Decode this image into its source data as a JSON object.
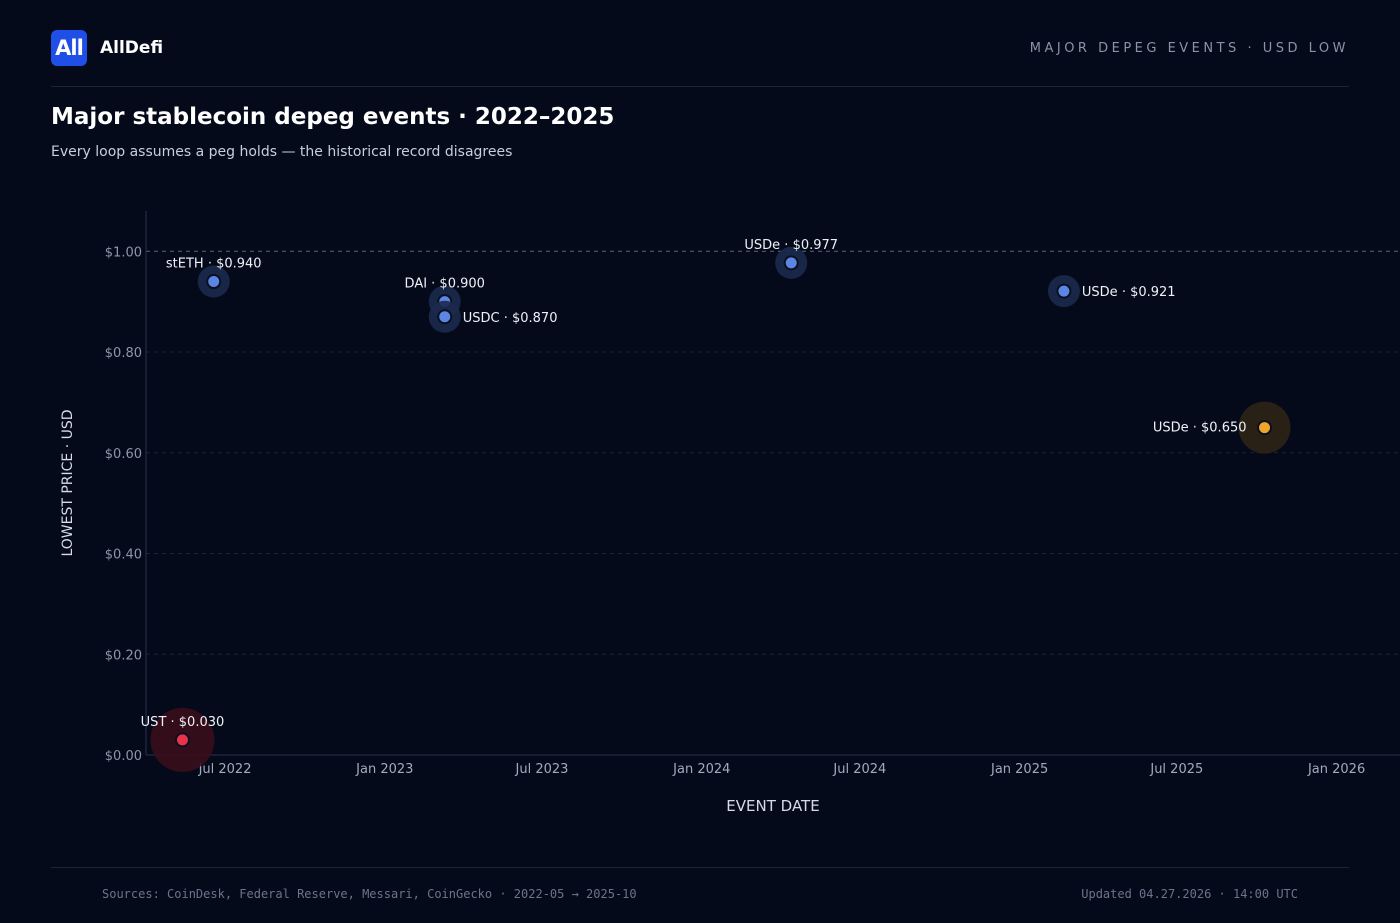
{
  "brand": {
    "logo_text": "All",
    "name": "AllDefi"
  },
  "header": {
    "tag": "MAJOR DEPEG EVENTS · USD LOW"
  },
  "page": {
    "title": "Major stablecoin depeg events · 2022–2025",
    "subtitle": "Every loop assumes a peg holds — the historical record disagrees"
  },
  "colors": {
    "background": "#050a1b",
    "point_blue": "#5b86e5",
    "point_red": "#e8334a",
    "point_amber": "#f0a42a",
    "peg_line": "#5c6478"
  },
  "chart_data": {
    "type": "scatter",
    "xlabel": "EVENT DATE",
    "ylabel": "LOWEST PRICE · USD",
    "xlim": [
      "2022-04-01",
      "2026-03-15"
    ],
    "ylim": [
      0,
      1.08
    ],
    "x_ticks": [
      {
        "date": "2022-07-01",
        "label": "Jul 2022"
      },
      {
        "date": "2023-01-01",
        "label": "Jan 2023"
      },
      {
        "date": "2023-07-01",
        "label": "Jul 2023"
      },
      {
        "date": "2024-01-01",
        "label": "Jan 2024"
      },
      {
        "date": "2024-07-01",
        "label": "Jul 2024"
      },
      {
        "date": "2025-01-01",
        "label": "Jan 2025"
      },
      {
        "date": "2025-07-01",
        "label": "Jul 2025"
      },
      {
        "date": "2026-01-01",
        "label": "Jan 2026"
      }
    ],
    "y_ticks": [
      {
        "value": 0.0,
        "label": "$0.00"
      },
      {
        "value": 0.2,
        "label": "$0.20"
      },
      {
        "value": 0.4,
        "label": "$0.40"
      },
      {
        "value": 0.6,
        "label": "$0.60"
      },
      {
        "value": 0.8,
        "label": "$0.80"
      },
      {
        "value": 1.0,
        "label": "$1.00"
      }
    ],
    "peg_value": 1.0,
    "grid": "horizontal dashed",
    "points": [
      {
        "asset": "UST",
        "date": "2022-05-13",
        "price": 0.03,
        "label": "UST · $0.030",
        "severity": "severe",
        "label_pos": "top"
      },
      {
        "asset": "stETH",
        "date": "2022-06-18",
        "price": 0.94,
        "label": "stETH · $0.940",
        "severity": "mild",
        "label_pos": "top"
      },
      {
        "asset": "DAI",
        "date": "2023-03-11",
        "price": 0.9,
        "label": "DAI · $0.900",
        "severity": "mild",
        "label_pos": "top"
      },
      {
        "asset": "USDC",
        "date": "2023-03-11",
        "price": 0.87,
        "label": "USDC · $0.870",
        "severity": "mild",
        "label_pos": "right"
      },
      {
        "asset": "USDe",
        "date": "2024-04-13",
        "price": 0.977,
        "label": "USDe · $0.977",
        "severity": "mild",
        "label_pos": "top"
      },
      {
        "asset": "USDe",
        "date": "2025-02-21",
        "price": 0.921,
        "label": "USDe · $0.921",
        "severity": "mild",
        "label_pos": "right"
      },
      {
        "asset": "USDe",
        "date": "2025-10-10",
        "price": 0.65,
        "label": "USDe · $0.650",
        "severity": "moderate",
        "label_pos": "left"
      }
    ]
  },
  "footer": {
    "sources": "Sources: CoinDesk, Federal Reserve, Messari, CoinGecko · 2022-05 → 2025-10",
    "updated": "Updated 04.27.2026 · 14:00 UTC"
  }
}
